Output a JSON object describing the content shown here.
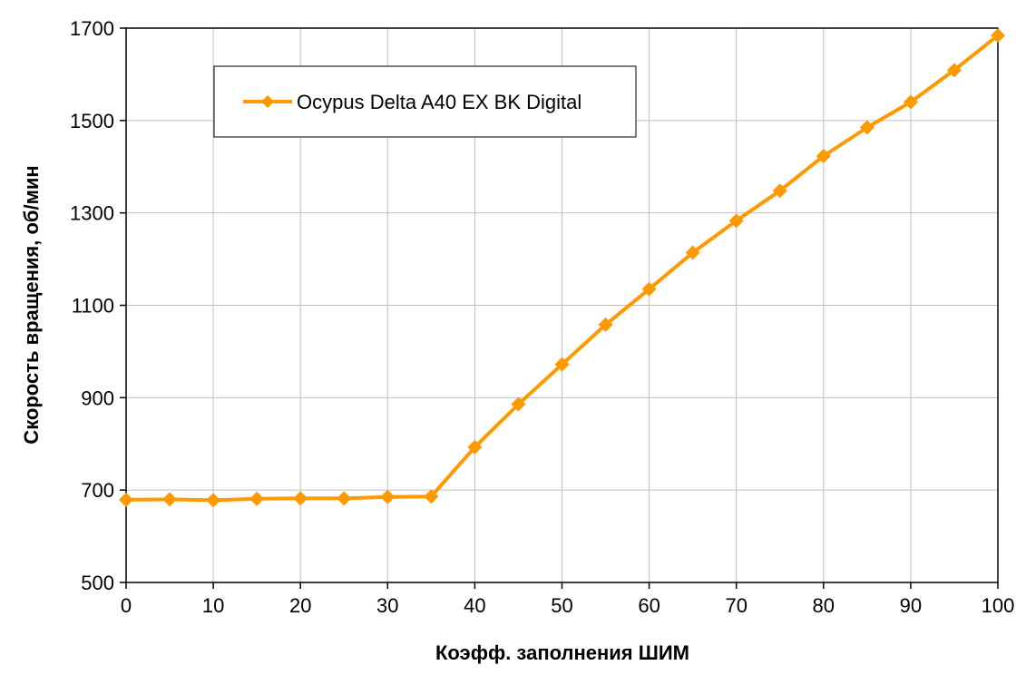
{
  "chart_data": {
    "type": "line",
    "xlabel": "Коэфф. заполнения ШИМ",
    "ylabel": "Скорость вращения, об/мин",
    "xlim": [
      0,
      100
    ],
    "ylim": [
      500,
      1700
    ],
    "x_ticks": [
      0,
      10,
      20,
      30,
      40,
      50,
      60,
      70,
      80,
      90,
      100
    ],
    "y_ticks": [
      500,
      700,
      900,
      1100,
      1300,
      1500,
      1700
    ],
    "grid": true,
    "legend_position": "top-left",
    "series": [
      {
        "name": "Ocypus Delta A40 EX BK Digital",
        "color": "#FF9900",
        "marker": "diamond",
        "x": [
          0,
          5,
          10,
          15,
          20,
          25,
          30,
          35,
          40,
          45,
          50,
          55,
          60,
          65,
          70,
          75,
          80,
          85,
          90,
          95,
          100
        ],
        "y": [
          679,
          680,
          678,
          681,
          682,
          682,
          685,
          686,
          793,
          886,
          972,
          1058,
          1135,
          1214,
          1283,
          1348,
          1423,
          1485,
          1540,
          1609,
          1684
        ]
      }
    ]
  }
}
